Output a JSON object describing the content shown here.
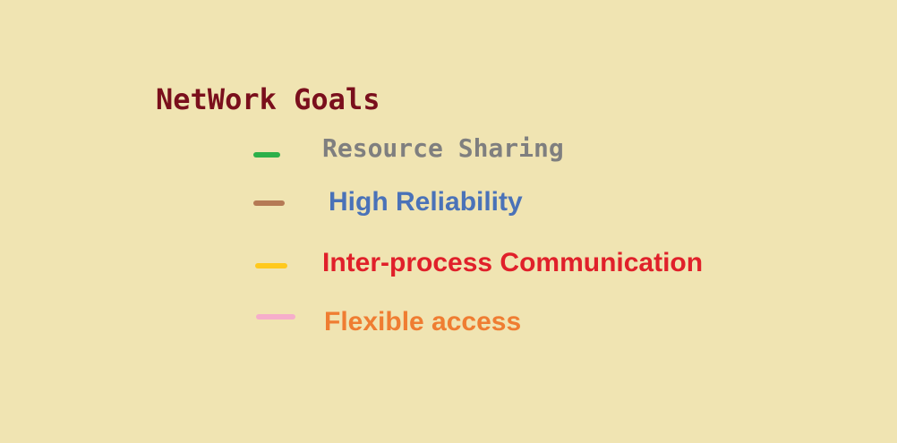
{
  "title": "NetWork Goals",
  "colors": {
    "background": "#f0e4b2",
    "title": "#7a0f1c"
  },
  "goals": [
    {
      "label": "Resource Sharing",
      "text_color": "#7f7f7f",
      "marker_color": "#2db04a"
    },
    {
      "label": "High Reliability",
      "text_color": "#4a72b8",
      "marker_color": "#b57a55"
    },
    {
      "label": "Inter-process Communication",
      "text_color": "#e0202a",
      "marker_color": "#ffc91e"
    },
    {
      "label": "Flexible access",
      "text_color": "#ef7d32",
      "marker_color": "#f6aecb"
    }
  ]
}
